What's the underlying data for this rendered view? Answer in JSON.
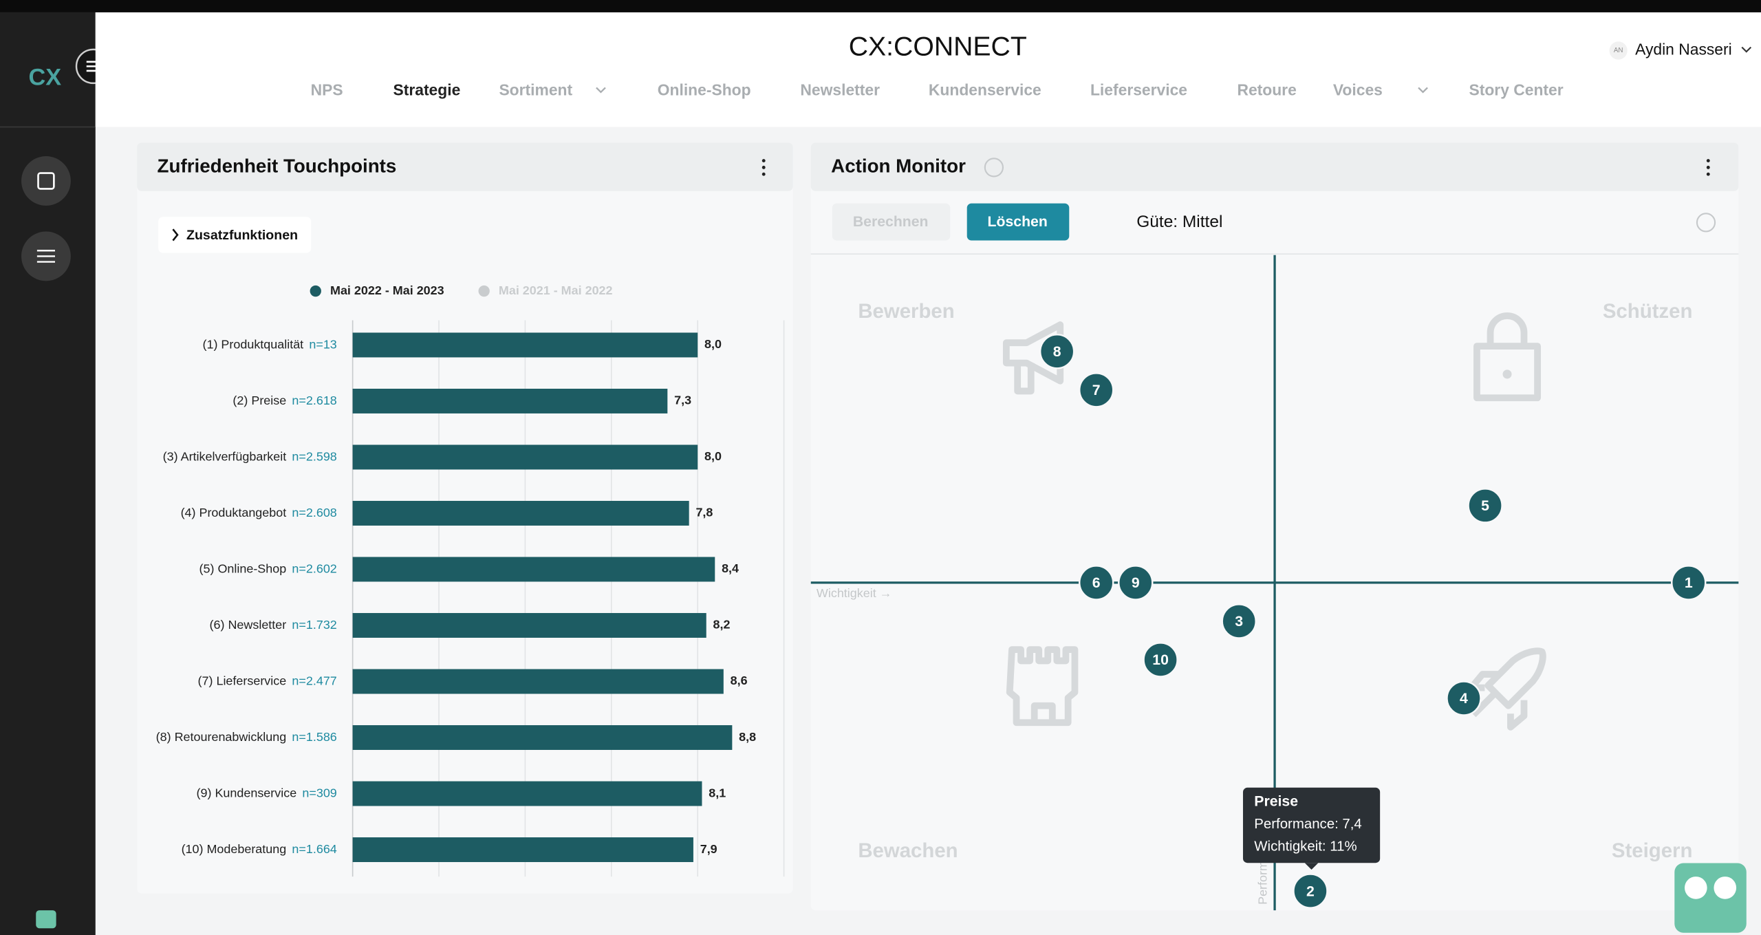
{
  "app": {
    "logo": "CX",
    "title": "CX:CONNECT",
    "user_initials": "AN",
    "user_name": "Aydin Nasseri"
  },
  "nav": [
    {
      "label": "NPS"
    },
    {
      "label": "Strategie",
      "active": true
    },
    {
      "label": "Sortiment",
      "dropdown": true
    },
    {
      "label": "Online-Shop"
    },
    {
      "label": "Newsletter"
    },
    {
      "label": "Kundenservice"
    },
    {
      "label": "Lieferservice"
    },
    {
      "label": "Retoure"
    },
    {
      "label": "Voices",
      "dropdown": true
    },
    {
      "label": "Story Center"
    }
  ],
  "left_panel": {
    "title": "Zufriedenheit Touchpoints",
    "button": "Zusatzfunktionen"
  },
  "right_panel": {
    "title": "Action Monitor",
    "buttons": [
      "Berechnen",
      "Löschen"
    ],
    "quality": "Güte: Mittel"
  },
  "chart_data": [
    {
      "type": "bar",
      "orientation": "horizontal",
      "categories": [
        "(1) Produktqualität",
        "(2) Preise",
        "(3) Artikelverfügbarkeit",
        "(4) Produktangebot",
        "(5) Online-Shop",
        "(6) Newsletter",
        "(7) Lieferservice",
        "(8) Retourenabwicklung",
        "(9) Kundenservice",
        "(10) Modeberatung"
      ],
      "sample_sizes": [
        "n=13",
        "n=2.618",
        "n=2.598",
        "n=2.608",
        "n=2.602",
        "n=1.732",
        "n=2.477",
        "n=1.586",
        "n=309",
        "n=1.664"
      ],
      "series": [
        {
          "name": "Mai 2022 - Mai 2023",
          "color": "#1d5c63",
          "values": [
            8.0,
            7.3,
            8.0,
            7.8,
            8.4,
            8.2,
            8.6,
            8.8,
            8.1,
            7.9
          ],
          "value_labels": [
            "8,0",
            "7,3",
            "8,0",
            "7,8",
            "8,4",
            "8,2",
            "8,6",
            "8,8",
            "8,1",
            "7,9"
          ]
        },
        {
          "name": "Mai 2021 - Mai 2022",
          "color": "#c9ccce",
          "hidden": true,
          "values": [
            null,
            null,
            null,
            null,
            null,
            null,
            null,
            null,
            null,
            null
          ]
        }
      ],
      "xlim": [
        0,
        10
      ],
      "xticks": [
        0,
        2,
        4,
        6,
        8,
        10
      ],
      "grid": true,
      "tick_labels": false
    },
    {
      "type": "scatter",
      "x_label": "Wichtigkeit →",
      "y_label": "Performance",
      "color": "#1d5c63",
      "labels": [
        "1",
        "2",
        "3",
        "4",
        "5",
        "6",
        "7",
        "8",
        "9",
        "10"
      ],
      "x": [
        21.6,
        11,
        9.0,
        15.3,
        15.9,
        5.0,
        5.0,
        3.9,
        6.1,
        6.8
      ],
      "y": [
        8.2,
        7.4,
        8.1,
        7.9,
        8.4,
        8.2,
        8.7,
        8.8,
        8.2,
        8.0
      ],
      "xlim": [
        -3,
        23
      ],
      "ylim": [
        7.35,
        9.05
      ],
      "quadrant_split": [
        10,
        8.2
      ],
      "quadrants": [
        "Bewerben",
        "Schützen",
        "Bewachen",
        "Steigern"
      ],
      "tooltip": {
        "point": 1,
        "title": "Preise",
        "lines": [
          "Performance: 7,4",
          "Wichtigkeit: 11%"
        ]
      }
    }
  ]
}
